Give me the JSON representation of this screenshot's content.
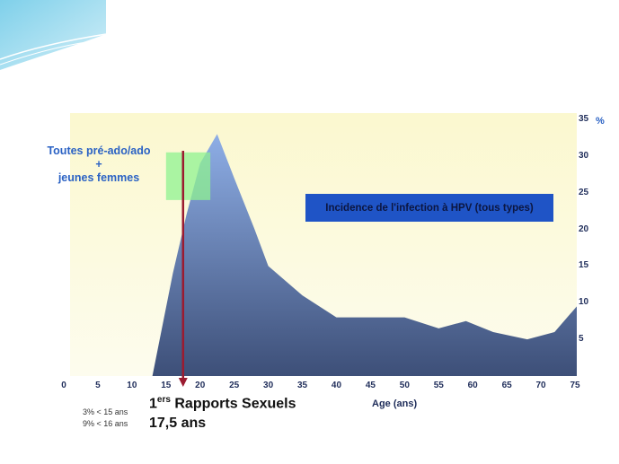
{
  "chart_data": {
    "type": "area",
    "title": "",
    "xlabel": "Age (ans)",
    "ylabel": "%",
    "xlim": [
      0,
      75
    ],
    "ylim": [
      0,
      35
    ],
    "x_ticks": [
      "0",
      "5",
      "10",
      "15",
      "20",
      "25",
      "30",
      "35",
      "40",
      "45",
      "50",
      "55",
      "60",
      "65",
      "70",
      "75"
    ],
    "y_ticks": [
      "5",
      "10",
      "15",
      "20",
      "25",
      "30",
      "35"
    ],
    "grid": false,
    "legend": "Incidence de l'infection à HPV (tous types)",
    "series": [
      {
        "x": [
          13,
          16,
          18,
          20,
          22.5,
          25,
          28,
          30,
          35,
          40,
          45,
          50,
          55,
          59,
          63,
          68,
          72,
          76
        ],
        "values": [
          0,
          14,
          22,
          29,
          33,
          27,
          20,
          15,
          11,
          8,
          8,
          8,
          6.5,
          7.5,
          6,
          5,
          6,
          9.5
        ]
      }
    ],
    "highlight_band": {
      "x": [
        15,
        21.5
      ],
      "y": [
        24,
        30.5
      ]
    },
    "marker_line": {
      "x": 17.5
    }
  },
  "annotations": {
    "callout_line1": "Toutes pré-ado/ado",
    "callout_line2": "+",
    "callout_line3": "jeunes femmes",
    "first_sex_base": "1",
    "first_sex_sup": "ers",
    "first_sex_rest": " Rapports Sexuels",
    "first_sex_age": "17,5 ans",
    "stat_1": "3%  < 15 ans",
    "stat_2": "9% < 16 ans"
  },
  "colors": {
    "area_top": "#8eaee6",
    "area_bottom": "#3d4f78",
    "background_top": "#fbf8cf",
    "background_bottom": "#fdfcee",
    "highlight": "#8ff290",
    "marker": "#9b1b30",
    "legend_fill": "#1f54c6"
  }
}
